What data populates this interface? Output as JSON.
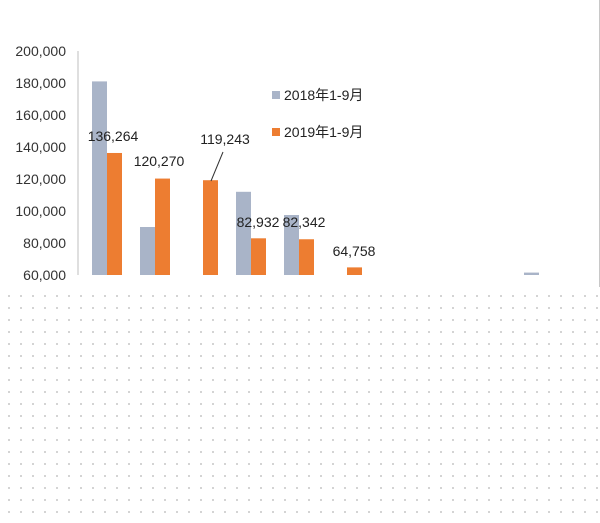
{
  "chart_data": {
    "type": "bar",
    "title": "",
    "xlabel": "",
    "ylabel": "",
    "ylim": [
      60000,
      200000
    ],
    "yticks": [
      "60,000",
      "80,000",
      "100,000",
      "120,000",
      "140,000",
      "160,000",
      "180,000",
      "200,000"
    ],
    "grid": false,
    "legend_position": "top-center",
    "categories": [
      "",
      "",
      "",
      "",
      "",
      "",
      "",
      "",
      "",
      ""
    ],
    "series": [
      {
        "name": "2018年1-9月",
        "color": "#a9b4c8",
        "values": [
          181000,
          90000,
          null,
          112000,
          97500,
          null,
          null,
          null,
          null,
          61500
        ]
      },
      {
        "name": "2019年1-9月",
        "color": "#ed7d31",
        "values": [
          136264,
          120270,
          119243,
          82932,
          82342,
          64758,
          null,
          null,
          null,
          null
        ]
      }
    ],
    "data_labels": [
      "136,264",
      "120,270",
      "119,243",
      "82,932",
      "82,342",
      "64,758"
    ]
  }
}
